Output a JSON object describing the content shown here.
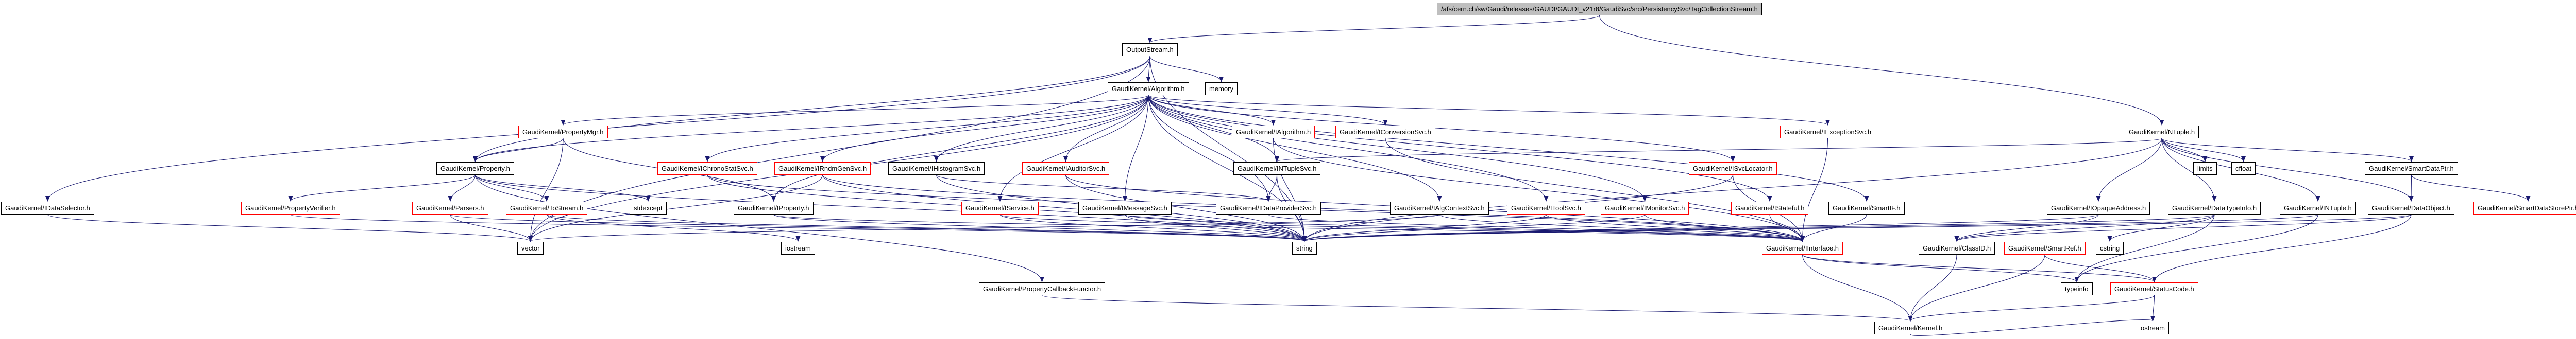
{
  "diagram": {
    "kind": "doxygen-include-graph",
    "root_file": "TagCollectionStream.h",
    "colors": {
      "edge": "#191970",
      "node_fill": "#ffffff",
      "node_border": "#000000",
      "truncated_border": "#ff0000",
      "root_fill": "#bfbfbf",
      "text": "#000000"
    }
  },
  "nodes": [
    {
      "id": "root",
      "label": "/afs/cern.ch/sw/Gaudi/releases/GAUDI/GAUDI_v21r8/GaudiSvc/src/PersistencySvc/TagCollectionStream.h",
      "style": "root"
    },
    {
      "id": "outputstream",
      "label": "OutputStream.h",
      "style": "normal"
    },
    {
      "id": "algorithm",
      "label": "GaudiKernel/Algorithm.h",
      "style": "normal"
    },
    {
      "id": "memory",
      "label": "memory",
      "style": "normal"
    },
    {
      "id": "propertymgr",
      "label": "GaudiKernel/PropertyMgr.h",
      "style": "truncated"
    },
    {
      "id": "ialgorithm",
      "label": "GaudiKernel/IAlgorithm.h",
      "style": "truncated"
    },
    {
      "id": "iconversionsvc",
      "label": "GaudiKernel/IConversionSvc.h",
      "style": "truncated"
    },
    {
      "id": "iexceptionsvc",
      "label": "GaudiKernel/IExceptionSvc.h",
      "style": "truncated"
    },
    {
      "id": "ntuple",
      "label": "GaudiKernel/NTuple.h",
      "style": "normal"
    },
    {
      "id": "property",
      "label": "GaudiKernel/Property.h",
      "style": "normal"
    },
    {
      "id": "ichronostatsvc",
      "label": "GaudiKernel/IChronoStatSvc.h",
      "style": "truncated"
    },
    {
      "id": "irndmgensvc",
      "label": "GaudiKernel/IRndmGenSvc.h",
      "style": "truncated"
    },
    {
      "id": "ihistogramsvc",
      "label": "GaudiKernel/IHistogramSvc.h",
      "style": "normal"
    },
    {
      "id": "iauditorsvc",
      "label": "GaudiKernel/IAuditorSvc.h",
      "style": "truncated"
    },
    {
      "id": "intuplesvc",
      "label": "GaudiKernel/INTupleSvc.h",
      "style": "normal"
    },
    {
      "id": "isvclocator",
      "label": "GaudiKernel/ISvcLocator.h",
      "style": "truncated"
    },
    {
      "id": "limits",
      "label": "limits",
      "style": "normal"
    },
    {
      "id": "cfloat",
      "label": "cfloat",
      "style": "normal"
    },
    {
      "id": "smartdataptr",
      "label": "GaudiKernel/SmartDataPtr.h",
      "style": "normal"
    },
    {
      "id": "idataselector",
      "label": "GaudiKernel/IDataSelector.h",
      "style": "normal"
    },
    {
      "id": "propertyverifier",
      "label": "GaudiKernel/PropertyVerifier.h",
      "style": "truncated"
    },
    {
      "id": "parsers",
      "label": "GaudiKernel/Parsers.h",
      "style": "truncated"
    },
    {
      "id": "tostream",
      "label": "GaudiKernel/ToStream.h",
      "style": "truncated"
    },
    {
      "id": "stdexcept",
      "label": "stdexcept",
      "style": "normal"
    },
    {
      "id": "iproperty",
      "label": "GaudiKernel/IProperty.h",
      "style": "normal"
    },
    {
      "id": "iservice",
      "label": "GaudiKernel/IService.h",
      "style": "truncated"
    },
    {
      "id": "imessagesvc",
      "label": "GaudiKernel/IMessageSvc.h",
      "style": "normal"
    },
    {
      "id": "idataprovidersvc",
      "label": "GaudiKernel/IDataProviderSvc.h",
      "style": "normal"
    },
    {
      "id": "ialgcontextsvc",
      "label": "GaudiKernel/IAlgContextSvc.h",
      "style": "normal"
    },
    {
      "id": "itoolsvc",
      "label": "GaudiKernel/IToolSvc.h",
      "style": "truncated"
    },
    {
      "id": "imonitorsvc",
      "label": "GaudiKernel/IMonitorSvc.h",
      "style": "truncated"
    },
    {
      "id": "istateful",
      "label": "GaudiKernel/IStateful.h",
      "style": "truncated"
    },
    {
      "id": "smartif",
      "label": "GaudiKernel/SmartIF.h",
      "style": "normal"
    },
    {
      "id": "iopaqueaddress",
      "label": "GaudiKernel/IOpaqueAddress.h",
      "style": "normal"
    },
    {
      "id": "datatypeinfo",
      "label": "GaudiKernel/DataTypeInfo.h",
      "style": "normal"
    },
    {
      "id": "intuple",
      "label": "GaudiKernel/INTuple.h",
      "style": "normal"
    },
    {
      "id": "dataobject",
      "label": "GaudiKernel/DataObject.h",
      "style": "normal"
    },
    {
      "id": "smartdatastoreptr",
      "label": "GaudiKernel/SmartDataStorePtr.h",
      "style": "truncated"
    },
    {
      "id": "vector",
      "label": "vector",
      "style": "normal"
    },
    {
      "id": "iostream",
      "label": "iostream",
      "style": "normal"
    },
    {
      "id": "string",
      "label": "string",
      "style": "normal"
    },
    {
      "id": "iinterface",
      "label": "GaudiKernel/IInterface.h",
      "style": "truncated"
    },
    {
      "id": "classid",
      "label": "GaudiKernel/ClassID.h",
      "style": "normal"
    },
    {
      "id": "smartref",
      "label": "GaudiKernel/SmartRef.h",
      "style": "truncated"
    },
    {
      "id": "cstring",
      "label": "cstring",
      "style": "normal"
    },
    {
      "id": "propertycallbackfunctor",
      "label": "GaudiKernel/PropertyCallbackFunctor.h",
      "style": "normal"
    },
    {
      "id": "typeinfo",
      "label": "typeinfo",
      "style": "normal"
    },
    {
      "id": "statuscode",
      "label": "GaudiKernel/StatusCode.h",
      "style": "truncated"
    },
    {
      "id": "kernel",
      "label": "GaudiKernel/Kernel.h",
      "style": "normal"
    },
    {
      "id": "ostream",
      "label": "ostream",
      "style": "normal"
    }
  ],
  "edges": [
    {
      "from": "root",
      "to": "outputstream"
    },
    {
      "from": "root",
      "to": "ntuple"
    },
    {
      "from": "outputstream",
      "to": "algorithm"
    },
    {
      "from": "outputstream",
      "to": "memory"
    },
    {
      "from": "outputstream",
      "to": "idataselector"
    },
    {
      "from": "outputstream",
      "to": "property"
    },
    {
      "from": "outputstream",
      "to": "string"
    },
    {
      "from": "outputstream",
      "to": "vector"
    },
    {
      "from": "algorithm",
      "to": "propertymgr"
    },
    {
      "from": "algorithm",
      "to": "ialgorithm"
    },
    {
      "from": "algorithm",
      "to": "iconversionsvc"
    },
    {
      "from": "algorithm",
      "to": "iexceptionsvc"
    },
    {
      "from": "algorithm",
      "to": "property"
    },
    {
      "from": "algorithm",
      "to": "ichronostatsvc"
    },
    {
      "from": "algorithm",
      "to": "irndmgensvc"
    },
    {
      "from": "algorithm",
      "to": "ihistogramsvc"
    },
    {
      "from": "algorithm",
      "to": "iauditorsvc"
    },
    {
      "from": "algorithm",
      "to": "intuplesvc"
    },
    {
      "from": "algorithm",
      "to": "isvclocator"
    },
    {
      "from": "algorithm",
      "to": "iproperty"
    },
    {
      "from": "algorithm",
      "to": "iservice"
    },
    {
      "from": "algorithm",
      "to": "imessagesvc"
    },
    {
      "from": "algorithm",
      "to": "idataprovidersvc"
    },
    {
      "from": "algorithm",
      "to": "ialgcontextsvc"
    },
    {
      "from": "algorithm",
      "to": "itoolsvc"
    },
    {
      "from": "algorithm",
      "to": "imonitorsvc"
    },
    {
      "from": "algorithm",
      "to": "istateful"
    },
    {
      "from": "algorithm",
      "to": "smartif"
    },
    {
      "from": "algorithm",
      "to": "string"
    },
    {
      "from": "algorithm",
      "to": "vector"
    },
    {
      "from": "propertymgr",
      "to": "property"
    },
    {
      "from": "propertymgr",
      "to": "iproperty"
    },
    {
      "from": "propertymgr",
      "to": "vector"
    },
    {
      "from": "property",
      "to": "propertyverifier"
    },
    {
      "from": "property",
      "to": "parsers"
    },
    {
      "from": "property",
      "to": "tostream"
    },
    {
      "from": "property",
      "to": "stdexcept"
    },
    {
      "from": "property",
      "to": "propertycallbackfunctor"
    },
    {
      "from": "property",
      "to": "string"
    },
    {
      "from": "propertyverifier",
      "to": "string"
    },
    {
      "from": "parsers",
      "to": "string"
    },
    {
      "from": "parsers",
      "to": "vector"
    },
    {
      "from": "tostream",
      "to": "string"
    },
    {
      "from": "tostream",
      "to": "iostream"
    },
    {
      "from": "iproperty",
      "to": "iinterface"
    },
    {
      "from": "iproperty",
      "to": "string"
    },
    {
      "from": "iservice",
      "to": "iinterface"
    },
    {
      "from": "iservice",
      "to": "string"
    },
    {
      "from": "imessagesvc",
      "to": "iinterface"
    },
    {
      "from": "imessagesvc",
      "to": "string"
    },
    {
      "from": "idataprovidersvc",
      "to": "iinterface"
    },
    {
      "from": "ialgcontextsvc",
      "to": "iinterface"
    },
    {
      "from": "ialgcontextsvc",
      "to": "vector"
    },
    {
      "from": "itoolsvc",
      "to": "iinterface"
    },
    {
      "from": "itoolsvc",
      "to": "string"
    },
    {
      "from": "imonitorsvc",
      "to": "iinterface"
    },
    {
      "from": "imonitorsvc",
      "to": "string"
    },
    {
      "from": "istateful",
      "to": "iinterface"
    },
    {
      "from": "smartif",
      "to": "iinterface"
    },
    {
      "from": "ialgorithm",
      "to": "iinterface"
    },
    {
      "from": "ialgorithm",
      "to": "string"
    },
    {
      "from": "iconversionsvc",
      "to": "iinterface"
    },
    {
      "from": "iexceptionsvc",
      "to": "iinterface"
    },
    {
      "from": "isvclocator",
      "to": "iinterface"
    },
    {
      "from": "isvclocator",
      "to": "string"
    },
    {
      "from": "ichronostatsvc",
      "to": "iinterface"
    },
    {
      "from": "ichronostatsvc",
      "to": "string"
    },
    {
      "from": "irndmgensvc",
      "to": "iinterface"
    },
    {
      "from": "irndmgensvc",
      "to": "string"
    },
    {
      "from": "irndmgensvc",
      "to": "vector"
    },
    {
      "from": "ihistogramsvc",
      "to": "idataprovidersvc"
    },
    {
      "from": "ihistogramsvc",
      "to": "string"
    },
    {
      "from": "iauditorsvc",
      "to": "iinterface"
    },
    {
      "from": "iauditorsvc",
      "to": "string"
    },
    {
      "from": "intuplesvc",
      "to": "idataprovidersvc"
    },
    {
      "from": "intuplesvc",
      "to": "string"
    },
    {
      "from": "idataselector",
      "to": "vector"
    },
    {
      "from": "ntuple",
      "to": "intuplesvc"
    },
    {
      "from": "ntuple",
      "to": "limits"
    },
    {
      "from": "ntuple",
      "to": "cfloat"
    },
    {
      "from": "ntuple",
      "to": "datatypeinfo"
    },
    {
      "from": "ntuple",
      "to": "intuple"
    },
    {
      "from": "ntuple",
      "to": "dataobject"
    },
    {
      "from": "ntuple",
      "to": "smartdataptr"
    },
    {
      "from": "ntuple",
      "to": "iopaqueaddress"
    },
    {
      "from": "ntuple",
      "to": "string"
    },
    {
      "from": "iopaqueaddress",
      "to": "classid"
    },
    {
      "from": "iopaqueaddress",
      "to": "string"
    },
    {
      "from": "datatypeinfo",
      "to": "classid"
    },
    {
      "from": "datatypeinfo",
      "to": "typeinfo"
    },
    {
      "from": "datatypeinfo",
      "to": "cstring"
    },
    {
      "from": "datatypeinfo",
      "to": "string"
    },
    {
      "from": "intuple",
      "to": "string"
    },
    {
      "from": "intuple",
      "to": "typeinfo"
    },
    {
      "from": "dataobject",
      "to": "classid"
    },
    {
      "from": "dataobject",
      "to": "statuscode"
    },
    {
      "from": "dataobject",
      "to": "string"
    },
    {
      "from": "smartdataptr",
      "to": "dataobject"
    },
    {
      "from": "smartdataptr",
      "to": "smartdatastoreptr"
    },
    {
      "from": "iinterface",
      "to": "kernel"
    },
    {
      "from": "iinterface",
      "to": "statuscode"
    },
    {
      "from": "iinterface",
      "to": "typeinfo"
    },
    {
      "from": "classid",
      "to": "kernel"
    },
    {
      "from": "smartref",
      "to": "kernel"
    },
    {
      "from": "smartref",
      "to": "statuscode"
    },
    {
      "from": "statuscode",
      "to": "kernel"
    },
    {
      "from": "statuscode",
      "to": "ostream"
    },
    {
      "from": "kernel",
      "to": "ostream"
    },
    {
      "from": "propertycallbackfunctor",
      "to": "kernel"
    }
  ]
}
